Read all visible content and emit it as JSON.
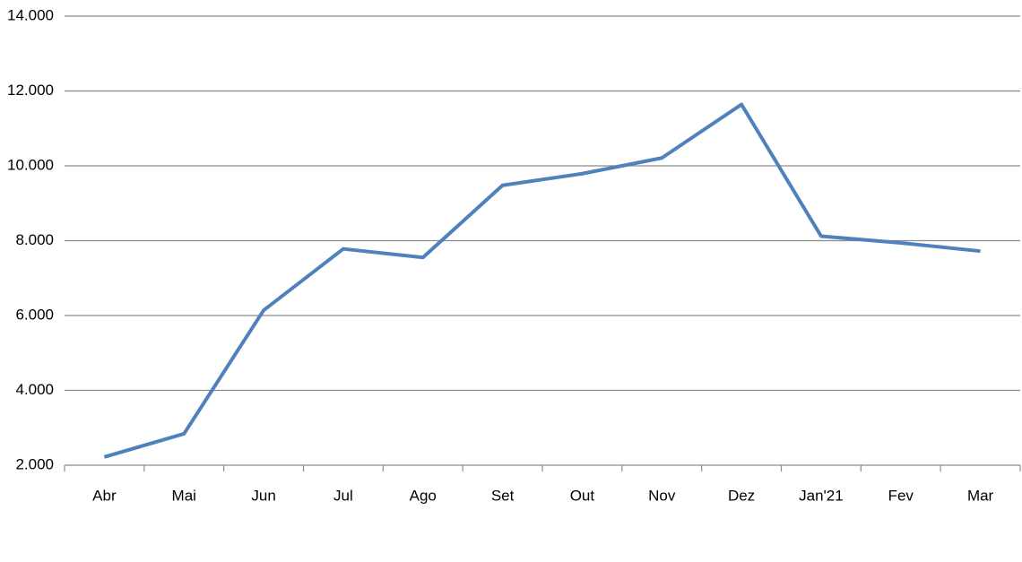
{
  "chart_data": {
    "type": "line",
    "categories": [
      "Abr",
      "Mai",
      "Jun",
      "Jul",
      "Ago",
      "Set",
      "Out",
      "Nov",
      "Dez",
      "Jan'21",
      "Fev",
      "Mar"
    ],
    "series": [
      {
        "color": "#4f81bd",
        "values": [
          2220,
          2840,
          6140,
          7780,
          7550,
          9480,
          9790,
          10210,
          11640,
          8120,
          7940,
          7720
        ]
      }
    ],
    "ylim": [
      2000,
      14000
    ],
    "yticks": [
      {
        "value": 2000,
        "label": "2.000"
      },
      {
        "value": 4000,
        "label": "4.000"
      },
      {
        "value": 6000,
        "label": "6.000"
      },
      {
        "value": 8000,
        "label": "8.000"
      },
      {
        "value": 10000,
        "label": "10.000"
      },
      {
        "value": 12000,
        "label": "12.000"
      },
      {
        "value": 14000,
        "label": "14.000"
      }
    ],
    "grid": true
  }
}
